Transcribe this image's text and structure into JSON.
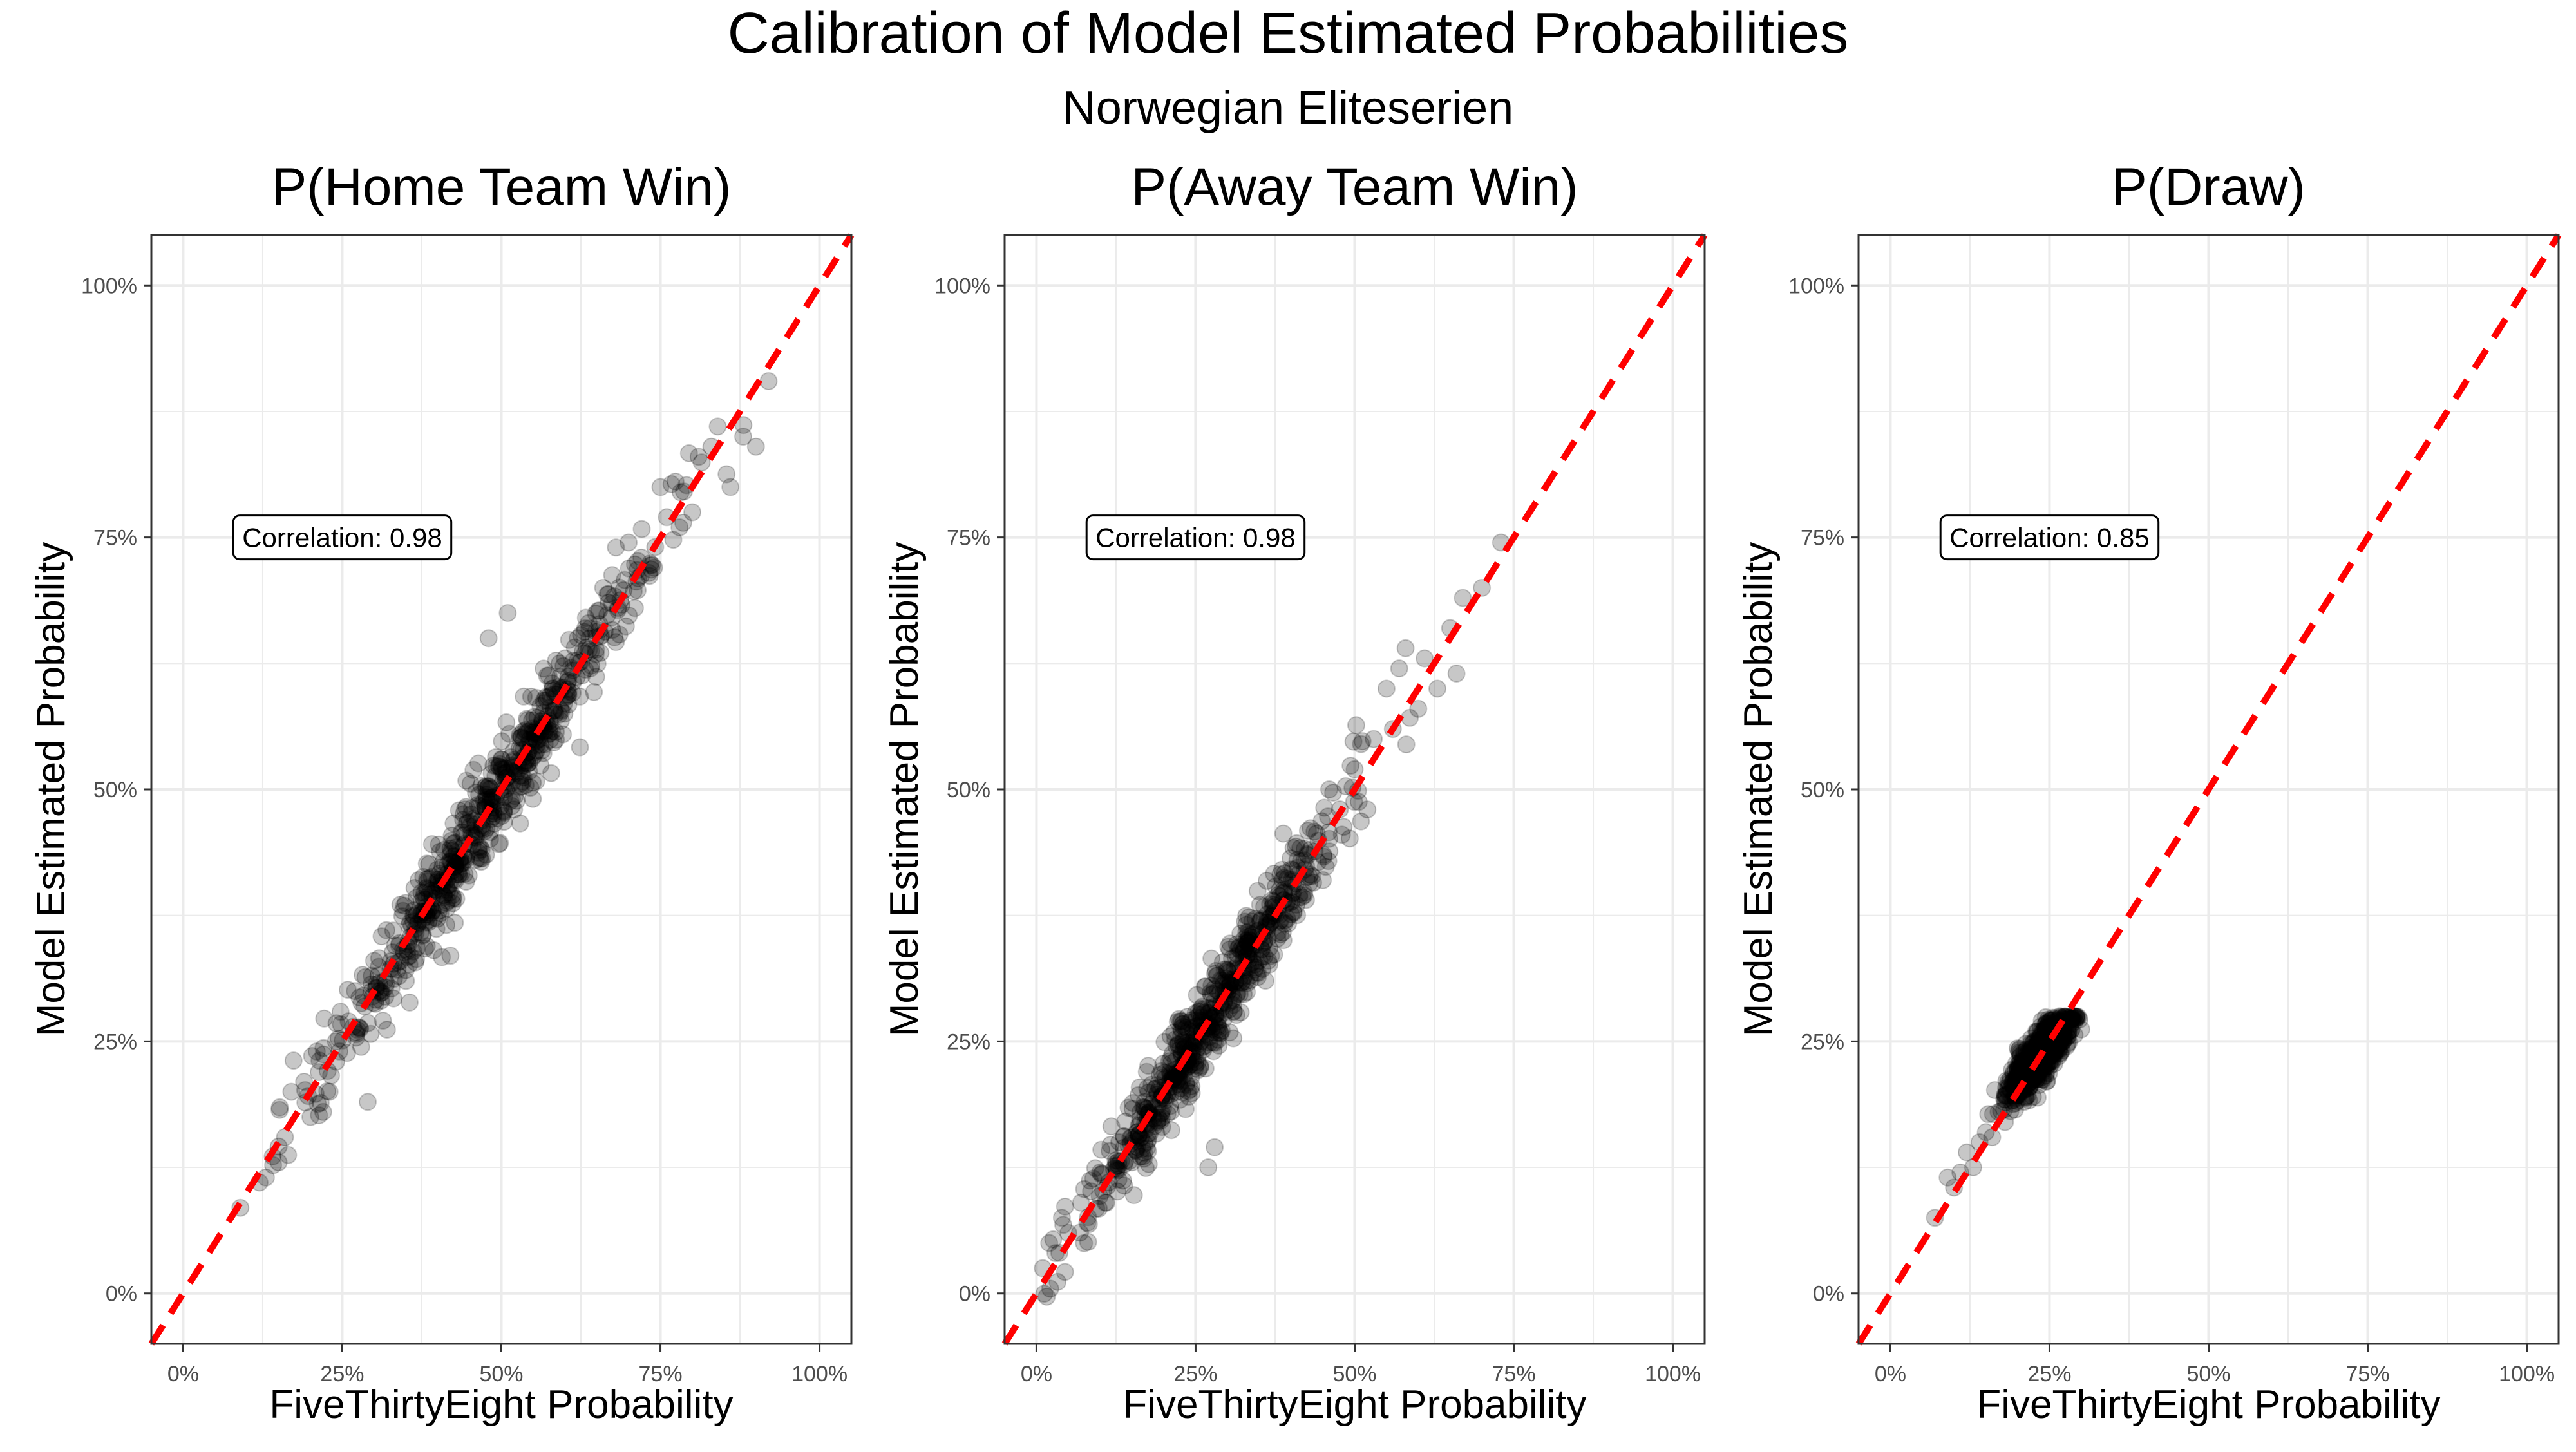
{
  "figure": {
    "title": "Calibration of Model Estimated Probabilities",
    "subtitle": "Norwegian Eliteserien"
  },
  "style": {
    "point_color": "#000000",
    "point_opacity": 0.22,
    "reference_line_color": "#ff0000",
    "grid_color": "#ebebeb",
    "panel_border_color": "#333333",
    "tick_label_color": "#4d4d4d"
  },
  "chart_data": [
    {
      "type": "scatter",
      "title": "P(Home Team Win)",
      "xlabel": "FiveThirtyEight Probability",
      "ylabel": "Model Estimated Probability",
      "xlim": [
        -0.05,
        1.05
      ],
      "ylim": [
        -0.05,
        1.05
      ],
      "x_ticks": [
        0,
        0.25,
        0.5,
        0.75,
        1
      ],
      "y_ticks": [
        0,
        0.25,
        0.5,
        0.75,
        1
      ],
      "tick_labels": [
        "0%",
        "25%",
        "50%",
        "75%",
        "100%"
      ],
      "grid": true,
      "reference_line": {
        "slope": 1,
        "intercept": 0,
        "style": "dashed"
      },
      "annotation": {
        "text": "Correlation: 0.98",
        "x": 0.25,
        "y": 0.75
      },
      "point_cloud": {
        "n": 650,
        "x_range": [
          0.09,
          0.92
        ],
        "x_center": 0.47,
        "x_sd": 0.13,
        "slope": 1.0,
        "intercept": 0.0,
        "noise_sd": 0.022
      },
      "points": [
        [
          0.09,
          0.085
        ],
        [
          0.12,
          0.11
        ],
        [
          0.13,
          0.115
        ],
        [
          0.15,
          0.13
        ],
        [
          0.16,
          0.155
        ],
        [
          0.17,
          0.2
        ],
        [
          0.19,
          0.21
        ],
        [
          0.2,
          0.175
        ],
        [
          0.21,
          0.24
        ],
        [
          0.22,
          0.18
        ],
        [
          0.23,
          0.2
        ],
        [
          0.24,
          0.25
        ],
        [
          0.26,
          0.27
        ],
        [
          0.27,
          0.3
        ],
        [
          0.29,
          0.19
        ],
        [
          0.3,
          0.33
        ],
        [
          0.31,
          0.3
        ],
        [
          0.33,
          0.36
        ],
        [
          0.35,
          0.31
        ],
        [
          0.37,
          0.41
        ],
        [
          0.39,
          0.4
        ],
        [
          0.41,
          0.44
        ],
        [
          0.42,
          0.335
        ],
        [
          0.44,
          0.47
        ],
        [
          0.46,
          0.43
        ],
        [
          0.48,
          0.5
        ],
        [
          0.48,
          0.65
        ],
        [
          0.5,
          0.53
        ],
        [
          0.51,
          0.675
        ],
        [
          0.52,
          0.48
        ],
        [
          0.54,
          0.57
        ],
        [
          0.56,
          0.55
        ],
        [
          0.58,
          0.6
        ],
        [
          0.6,
          0.63
        ],
        [
          0.62,
          0.65
        ],
        [
          0.64,
          0.62
        ],
        [
          0.66,
          0.7
        ],
        [
          0.68,
          0.74
        ],
        [
          0.7,
          0.745
        ],
        [
          0.71,
          0.68
        ],
        [
          0.72,
          0.73
        ],
        [
          0.74,
          0.72
        ],
        [
          0.75,
          0.8
        ],
        [
          0.76,
          0.77
        ],
        [
          0.78,
          0.76
        ],
        [
          0.8,
          0.775
        ],
        [
          0.81,
          0.83
        ],
        [
          0.83,
          0.84
        ],
        [
          0.84,
          0.86
        ],
        [
          0.86,
          0.8
        ],
        [
          0.88,
          0.85
        ],
        [
          0.9,
          0.84
        ],
        [
          0.92,
          0.905
        ]
      ]
    },
    {
      "type": "scatter",
      "title": "P(Away Team Win)",
      "xlabel": "FiveThirtyEight Probability",
      "ylabel": "Model Estimated Probability",
      "xlim": [
        -0.05,
        1.05
      ],
      "ylim": [
        -0.05,
        1.05
      ],
      "x_ticks": [
        0,
        0.25,
        0.5,
        0.75,
        1
      ],
      "y_ticks": [
        0,
        0.25,
        0.5,
        0.75,
        1
      ],
      "tick_labels": [
        "0%",
        "25%",
        "50%",
        "75%",
        "100%"
      ],
      "grid": true,
      "reference_line": {
        "slope": 1,
        "intercept": 0,
        "style": "dashed"
      },
      "annotation": {
        "text": "Correlation: 0.98",
        "x": 0.25,
        "y": 0.75
      },
      "point_cloud": {
        "n": 650,
        "x_range": [
          0.01,
          0.73
        ],
        "x_center": 0.27,
        "x_sd": 0.1,
        "slope": 1.0,
        "intercept": 0.0,
        "noise_sd": 0.021
      },
      "points": [
        [
          0.01,
          0.025
        ],
        [
          0.02,
          0.05
        ],
        [
          0.03,
          0.04
        ],
        [
          0.04,
          0.075
        ],
        [
          0.05,
          0.06
        ],
        [
          0.07,
          0.09
        ],
        [
          0.08,
          0.07
        ],
        [
          0.1,
          0.12
        ],
        [
          0.11,
          0.09
        ],
        [
          0.13,
          0.15
        ],
        [
          0.15,
          0.13
        ],
        [
          0.17,
          0.19
        ],
        [
          0.19,
          0.17
        ],
        [
          0.21,
          0.22
        ],
        [
          0.23,
          0.25
        ],
        [
          0.25,
          0.23
        ],
        [
          0.26,
          0.28
        ],
        [
          0.27,
          0.125
        ],
        [
          0.28,
          0.145
        ],
        [
          0.3,
          0.32
        ],
        [
          0.31,
          0.28
        ],
        [
          0.33,
          0.35
        ],
        [
          0.35,
          0.33
        ],
        [
          0.37,
          0.39
        ],
        [
          0.39,
          0.37
        ],
        [
          0.41,
          0.43
        ],
        [
          0.43,
          0.44
        ],
        [
          0.45,
          0.41
        ],
        [
          0.46,
          0.5
        ],
        [
          0.48,
          0.455
        ],
        [
          0.5,
          0.52
        ],
        [
          0.51,
          0.545
        ],
        [
          0.52,
          0.48
        ],
        [
          0.53,
          0.55
        ],
        [
          0.55,
          0.6
        ],
        [
          0.56,
          0.56
        ],
        [
          0.57,
          0.62
        ],
        [
          0.58,
          0.64
        ],
        [
          0.6,
          0.58
        ],
        [
          0.61,
          0.63
        ],
        [
          0.63,
          0.6
        ],
        [
          0.65,
          0.66
        ],
        [
          0.66,
          0.615
        ],
        [
          0.67,
          0.69
        ],
        [
          0.7,
          0.7
        ],
        [
          0.73,
          0.745
        ]
      ]
    },
    {
      "type": "scatter",
      "title": "P(Draw)",
      "xlabel": "FiveThirtyEight Probability",
      "ylabel": "Model Estimated Probability",
      "xlim": [
        -0.05,
        1.05
      ],
      "ylim": [
        -0.05,
        1.05
      ],
      "x_ticks": [
        0,
        0.25,
        0.5,
        0.75,
        1
      ],
      "y_ticks": [
        0,
        0.25,
        0.5,
        0.75,
        1
      ],
      "tick_labels": [
        "0%",
        "25%",
        "50%",
        "75%",
        "100%"
      ],
      "grid": true,
      "reference_line": {
        "slope": 1,
        "intercept": 0,
        "style": "dashed"
      },
      "annotation": {
        "text": "Correlation: 0.85",
        "x": 0.25,
        "y": 0.75
      },
      "point_cloud": {
        "n": 700,
        "x_range": [
          0.07,
          0.3
        ],
        "x_center": 0.235,
        "x_sd": 0.025,
        "slope": 0.75,
        "intercept": 0.06,
        "noise_sd": 0.012,
        "y_max": 0.275
      },
      "points": [
        [
          0.07,
          0.075
        ],
        [
          0.09,
          0.115
        ],
        [
          0.1,
          0.105
        ],
        [
          0.11,
          0.12
        ],
        [
          0.12,
          0.14
        ],
        [
          0.13,
          0.125
        ],
        [
          0.14,
          0.15
        ],
        [
          0.15,
          0.16
        ],
        [
          0.16,
          0.155
        ],
        [
          0.17,
          0.18
        ],
        [
          0.18,
          0.17
        ],
        [
          0.19,
          0.2
        ],
        [
          0.2,
          0.21
        ],
        [
          0.21,
          0.19
        ],
        [
          0.22,
          0.23
        ],
        [
          0.23,
          0.25
        ],
        [
          0.24,
          0.26
        ],
        [
          0.25,
          0.27
        ],
        [
          0.26,
          0.24
        ],
        [
          0.27,
          0.27
        ],
        [
          0.28,
          0.26
        ],
        [
          0.29,
          0.27
        ],
        [
          0.3,
          0.262
        ]
      ]
    }
  ]
}
